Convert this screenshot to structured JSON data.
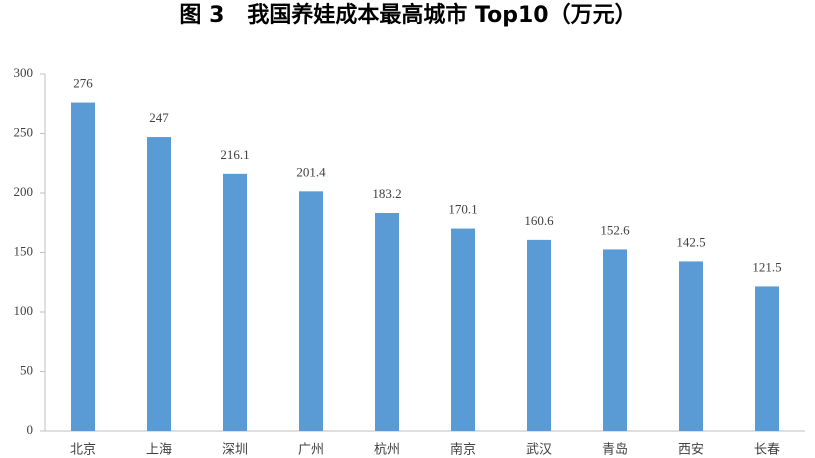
{
  "chart_data": {
    "type": "bar",
    "title": "图 3   我国养娃成本最高城市 Top10（万元）",
    "categories": [
      "北京",
      "上海",
      "深圳",
      "广州",
      "杭州",
      "南京",
      "武汉",
      "青岛",
      "西安",
      "长春"
    ],
    "values": [
      276,
      247,
      216.1,
      201.4,
      183.2,
      170.1,
      160.6,
      152.6,
      142.5,
      121.5
    ],
    "color": "#5b9bd5",
    "ylim": [
      0,
      300
    ],
    "yticks": [
      0,
      50,
      100,
      150,
      200,
      250,
      300
    ],
    "grid": false
  }
}
